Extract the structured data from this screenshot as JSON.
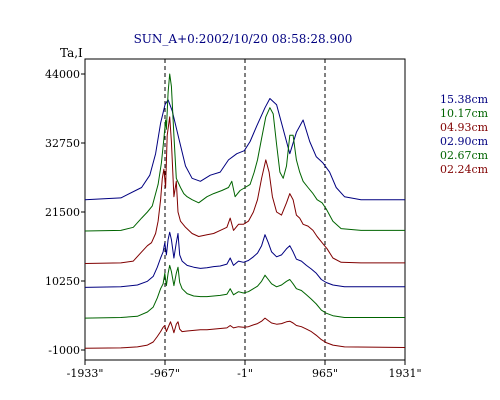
{
  "chart_data": {
    "type": "line",
    "title": "SUN_A+0:2002/10/20 08:58:28.900",
    "ylabel": "Ta,I",
    "xlabel": "",
    "y_ticks": [
      "44000",
      "32750",
      "21500",
      "10250",
      "-1000"
    ],
    "y_tick_values": [
      44000,
      32750,
      21500,
      10250,
      -1000
    ],
    "x_ticks": [
      "-1933\"",
      "-967\"",
      "-1\"",
      "965\"",
      "1931\""
    ],
    "x_tick_values": [
      -1933,
      -967,
      -1,
      965,
      1931
    ],
    "xlim": [
      -1933,
      1931
    ],
    "ylim": [
      -1000,
      50000
    ],
    "grid": false,
    "vertical_dashed_lines_at": [
      -967,
      -1,
      965
    ],
    "legend_position": "right",
    "series": [
      {
        "name": "15.38cm",
        "color": "#000080",
        "points": [
          [
            -1933,
            23500
          ],
          [
            -1500,
            23800
          ],
          [
            -1250,
            25500
          ],
          [
            -1150,
            27500
          ],
          [
            -1080,
            31000
          ],
          [
            -1020,
            36000
          ],
          [
            -967,
            39000
          ],
          [
            -930,
            39800
          ],
          [
            -880,
            38000
          ],
          [
            -800,
            33500
          ],
          [
            -720,
            29000
          ],
          [
            -640,
            27000
          ],
          [
            -540,
            26500
          ],
          [
            -420,
            27500
          ],
          [
            -300,
            28000
          ],
          [
            -200,
            30000
          ],
          [
            -100,
            31000
          ],
          [
            -10,
            31500
          ],
          [
            60,
            33000
          ],
          [
            140,
            35500
          ],
          [
            240,
            38500
          ],
          [
            300,
            40000
          ],
          [
            380,
            39000
          ],
          [
            460,
            35000
          ],
          [
            540,
            31000
          ],
          [
            620,
            34500
          ],
          [
            700,
            36500
          ],
          [
            780,
            33000
          ],
          [
            860,
            30500
          ],
          [
            940,
            29500
          ],
          [
            1020,
            28000
          ],
          [
            1100,
            25500
          ],
          [
            1200,
            24000
          ],
          [
            1400,
            23500
          ],
          [
            1931,
            23500
          ]
        ]
      },
      {
        "name": "10.17cm",
        "color": "#006400",
        "points": [
          [
            -1933,
            18400
          ],
          [
            -1500,
            18500
          ],
          [
            -1350,
            19000
          ],
          [
            -1250,
            20500
          ],
          [
            -1180,
            21500
          ],
          [
            -1120,
            22500
          ],
          [
            -1050,
            26000
          ],
          [
            -1010,
            29500
          ],
          [
            -980,
            33500
          ],
          [
            -960,
            36500
          ],
          [
            -950,
            35000
          ],
          [
            -930,
            41000
          ],
          [
            -910,
            44000
          ],
          [
            -890,
            42000
          ],
          [
            -860,
            34000
          ],
          [
            -830,
            27000
          ],
          [
            -780,
            25500
          ],
          [
            -740,
            24500
          ],
          [
            -700,
            24000
          ],
          [
            -640,
            23500
          ],
          [
            -560,
            23000
          ],
          [
            -460,
            24000
          ],
          [
            -380,
            24500
          ],
          [
            -280,
            25000
          ],
          [
            -200,
            25500
          ],
          [
            -160,
            26500
          ],
          [
            -120,
            24000
          ],
          [
            -60,
            25000
          ],
          [
            0,
            25500
          ],
          [
            60,
            26000
          ],
          [
            110,
            28000
          ],
          [
            150,
            30000
          ],
          [
            200,
            33500
          ],
          [
            250,
            37000
          ],
          [
            300,
            38500
          ],
          [
            340,
            37500
          ],
          [
            380,
            32500
          ],
          [
            420,
            28000
          ],
          [
            460,
            27000
          ],
          [
            500,
            29000
          ],
          [
            540,
            34000
          ],
          [
            580,
            34000
          ],
          [
            620,
            30000
          ],
          [
            660,
            28000
          ],
          [
            700,
            26500
          ],
          [
            760,
            25500
          ],
          [
            820,
            24500
          ],
          [
            870,
            23500
          ],
          [
            930,
            23000
          ],
          [
            980,
            22000
          ],
          [
            1060,
            20000
          ],
          [
            1160,
            18800
          ],
          [
            1400,
            18500
          ],
          [
            1931,
            18500
          ]
        ]
      },
      {
        "name": "04.93cm",
        "color": "#800000",
        "points": [
          [
            -1933,
            13100
          ],
          [
            -1500,
            13200
          ],
          [
            -1350,
            13500
          ],
          [
            -1250,
            15000
          ],
          [
            -1180,
            16000
          ],
          [
            -1130,
            16500
          ],
          [
            -1080,
            18000
          ],
          [
            -1050,
            20000
          ],
          [
            -1020,
            23500
          ],
          [
            -1000,
            27000
          ],
          [
            -980,
            28500
          ],
          [
            -960,
            25500
          ],
          [
            -940,
            34000
          ],
          [
            -910,
            37000
          ],
          [
            -890,
            33000
          ],
          [
            -860,
            24000
          ],
          [
            -830,
            26500
          ],
          [
            -810,
            21500
          ],
          [
            -780,
            20000
          ],
          [
            -720,
            19000
          ],
          [
            -640,
            18000
          ],
          [
            -560,
            17500
          ],
          [
            -460,
            17800
          ],
          [
            -380,
            18000
          ],
          [
            -300,
            18500
          ],
          [
            -220,
            19000
          ],
          [
            -180,
            20500
          ],
          [
            -140,
            18500
          ],
          [
            -80,
            19500
          ],
          [
            -20,
            19500
          ],
          [
            40,
            20000
          ],
          [
            100,
            21500
          ],
          [
            150,
            23500
          ],
          [
            200,
            27000
          ],
          [
            250,
            30000
          ],
          [
            290,
            28000
          ],
          [
            330,
            24000
          ],
          [
            380,
            21500
          ],
          [
            440,
            21000
          ],
          [
            500,
            23000
          ],
          [
            540,
            24500
          ],
          [
            580,
            23500
          ],
          [
            620,
            21000
          ],
          [
            660,
            20500
          ],
          [
            700,
            19500
          ],
          [
            760,
            19200
          ],
          [
            820,
            18500
          ],
          [
            870,
            17500
          ],
          [
            930,
            16500
          ],
          [
            990,
            15500
          ],
          [
            1060,
            14000
          ],
          [
            1160,
            13300
          ],
          [
            1400,
            13200
          ],
          [
            1931,
            13200
          ]
        ]
      },
      {
        "name": "02.90cm",
        "color": "#000080",
        "points": [
          [
            -1933,
            9200
          ],
          [
            -1500,
            9300
          ],
          [
            -1300,
            9600
          ],
          [
            -1180,
            10200
          ],
          [
            -1110,
            11000
          ],
          [
            -1060,
            12500
          ],
          [
            -1020,
            14000
          ],
          [
            -990,
            15000
          ],
          [
            -970,
            16500
          ],
          [
            -950,
            14500
          ],
          [
            -930,
            17000
          ],
          [
            -910,
            18200
          ],
          [
            -890,
            17000
          ],
          [
            -860,
            14000
          ],
          [
            -830,
            16500
          ],
          [
            -810,
            18000
          ],
          [
            -790,
            14500
          ],
          [
            -760,
            13500
          ],
          [
            -700,
            12800
          ],
          [
            -620,
            12500
          ],
          [
            -540,
            12300
          ],
          [
            -460,
            12400
          ],
          [
            -380,
            12600
          ],
          [
            -300,
            12700
          ],
          [
            -220,
            13000
          ],
          [
            -180,
            14000
          ],
          [
            -140,
            12800
          ],
          [
            -80,
            13500
          ],
          [
            -20,
            13300
          ],
          [
            40,
            13600
          ],
          [
            100,
            14200
          ],
          [
            150,
            14800
          ],
          [
            200,
            16000
          ],
          [
            240,
            17800
          ],
          [
            280,
            16500
          ],
          [
            320,
            15000
          ],
          [
            380,
            14200
          ],
          [
            440,
            14500
          ],
          [
            500,
            15500
          ],
          [
            540,
            16000
          ],
          [
            580,
            15000
          ],
          [
            620,
            13800
          ],
          [
            680,
            13500
          ],
          [
            740,
            12800
          ],
          [
            800,
            12200
          ],
          [
            860,
            11500
          ],
          [
            920,
            10500
          ],
          [
            980,
            10000
          ],
          [
            1060,
            9600
          ],
          [
            1200,
            9300
          ],
          [
            1931,
            9300
          ]
        ]
      },
      {
        "name": "02.67cm",
        "color": "#006400",
        "points": [
          [
            -1933,
            4200
          ],
          [
            -1500,
            4300
          ],
          [
            -1300,
            4500
          ],
          [
            -1180,
            5200
          ],
          [
            -1110,
            6000
          ],
          [
            -1060,
            7500
          ],
          [
            -1020,
            9000
          ],
          [
            -990,
            9800
          ],
          [
            -970,
            11500
          ],
          [
            -950,
            9500
          ],
          [
            -930,
            11500
          ],
          [
            -910,
            12800
          ],
          [
            -890,
            11800
          ],
          [
            -860,
            9500
          ],
          [
            -830,
            11500
          ],
          [
            -810,
            12500
          ],
          [
            -790,
            10000
          ],
          [
            -760,
            9000
          ],
          [
            -700,
            8200
          ],
          [
            -620,
            7800
          ],
          [
            -540,
            7700
          ],
          [
            -460,
            7700
          ],
          [
            -380,
            7800
          ],
          [
            -300,
            7900
          ],
          [
            -220,
            8100
          ],
          [
            -180,
            9000
          ],
          [
            -140,
            8000
          ],
          [
            -80,
            8500
          ],
          [
            -20,
            8300
          ],
          [
            40,
            8500
          ],
          [
            100,
            9000
          ],
          [
            150,
            9400
          ],
          [
            200,
            10200
          ],
          [
            240,
            11200
          ],
          [
            280,
            10500
          ],
          [
            320,
            9800
          ],
          [
            380,
            9300
          ],
          [
            440,
            9600
          ],
          [
            500,
            10200
          ],
          [
            540,
            10500
          ],
          [
            580,
            9800
          ],
          [
            620,
            9000
          ],
          [
            680,
            8700
          ],
          [
            740,
            8000
          ],
          [
            800,
            7300
          ],
          [
            860,
            6500
          ],
          [
            920,
            5500
          ],
          [
            980,
            5000
          ],
          [
            1060,
            4600
          ],
          [
            1200,
            4300
          ],
          [
            1931,
            4300
          ]
        ]
      },
      {
        "name": "02.24cm",
        "color": "#800000",
        "points": [
          [
            -1933,
            -700
          ],
          [
            -1500,
            -650
          ],
          [
            -1300,
            -500
          ],
          [
            -1180,
            -200
          ],
          [
            -1110,
            300
          ],
          [
            -1060,
            1200
          ],
          [
            -1020,
            2000
          ],
          [
            -990,
            2700
          ],
          [
            -970,
            3000
          ],
          [
            -950,
            2000
          ],
          [
            -920,
            3000
          ],
          [
            -900,
            3600
          ],
          [
            -880,
            2800
          ],
          [
            -860,
            1800
          ],
          [
            -830,
            3200
          ],
          [
            -810,
            3600
          ],
          [
            -790,
            2400
          ],
          [
            -760,
            2000
          ],
          [
            -700,
            2100
          ],
          [
            -620,
            2200
          ],
          [
            -540,
            2300
          ],
          [
            -460,
            2300
          ],
          [
            -380,
            2400
          ],
          [
            -300,
            2500
          ],
          [
            -220,
            2600
          ],
          [
            -180,
            3000
          ],
          [
            -140,
            2600
          ],
          [
            -80,
            2800
          ],
          [
            -20,
            2700
          ],
          [
            40,
            2800
          ],
          [
            100,
            3100
          ],
          [
            150,
            3300
          ],
          [
            200,
            3700
          ],
          [
            240,
            4200
          ],
          [
            280,
            3800
          ],
          [
            320,
            3400
          ],
          [
            380,
            3200
          ],
          [
            440,
            3300
          ],
          [
            500,
            3600
          ],
          [
            540,
            3700
          ],
          [
            580,
            3400
          ],
          [
            620,
            3000
          ],
          [
            680,
            2800
          ],
          [
            740,
            2400
          ],
          [
            800,
            2000
          ],
          [
            860,
            1400
          ],
          [
            920,
            700
          ],
          [
            980,
            200
          ],
          [
            1060,
            -200
          ],
          [
            1200,
            -500
          ],
          [
            1931,
            -600
          ]
        ]
      }
    ]
  }
}
